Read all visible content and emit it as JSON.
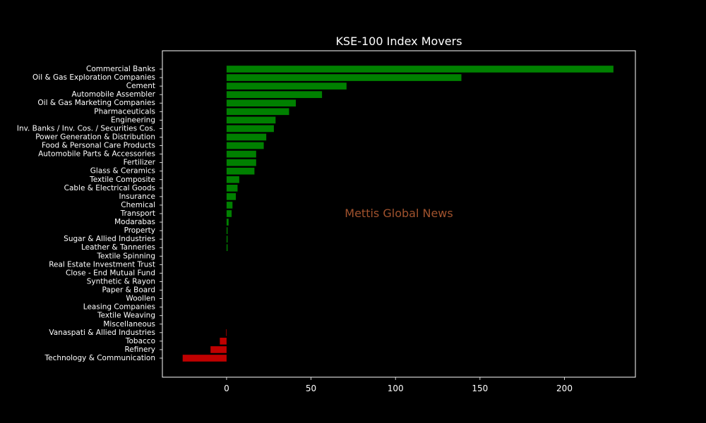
{
  "chart_data": {
    "type": "bar",
    "orientation": "horizontal",
    "title": "KSE-100 Index Movers",
    "watermark": "Mettis Global News",
    "xlabel": "",
    "ylabel": "",
    "xlim": [
      -38,
      242
    ],
    "x_ticks": [
      0,
      50,
      100,
      150,
      200
    ],
    "grid": false,
    "colors": {
      "background": "#000000",
      "text": "#ffffff",
      "axes": "#ffffff",
      "positive": "#008000",
      "negative": "#c00000",
      "watermark": "#a0522d"
    },
    "categories": [
      "Commercial Banks",
      "Oil & Gas Exploration Companies",
      "Cement",
      "Automobile Assembler",
      "Oil & Gas Marketing Companies",
      "Pharmaceuticals",
      "Engineering",
      "Inv. Banks / Inv. Cos. / Securities Cos.",
      "Power Generation & Distribution",
      "Food & Personal Care Products",
      "Automobile Parts & Accessories",
      "Fertilizer",
      "Glass & Ceramics",
      "Textile Composite",
      "Cable & Electrical Goods",
      "Insurance",
      "Chemical",
      "Transport",
      "Modarabas",
      "Property",
      "Sugar & Allied Industries",
      "Leather & Tanneries",
      "Textile Spinning",
      "Real Estate Investment Trust",
      "Close - End Mutual Fund",
      "Synthetic & Rayon",
      "Paper & Board",
      "Woollen",
      "Leasing Companies",
      "Textile Weaving",
      "Miscellaneous",
      "Vanaspati & Allied Industries",
      "Tobacco",
      "Refinery",
      "Technology & Communication"
    ],
    "values": [
      229,
      139,
      71,
      56.5,
      41,
      37,
      29,
      28,
      23.5,
      22,
      17.5,
      17.5,
      16.5,
      7.5,
      6.5,
      5.5,
      3.5,
      3,
      1.2,
      0.6,
      0.6,
      0.6,
      0,
      0,
      0,
      0,
      0,
      0,
      0,
      0,
      0,
      -0.3,
      -4,
      -9.5,
      -26
    ]
  }
}
